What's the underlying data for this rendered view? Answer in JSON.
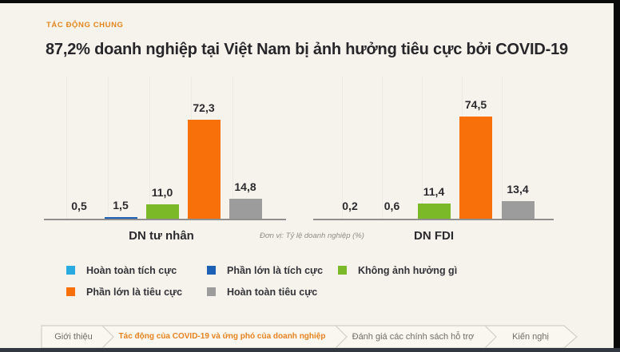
{
  "header": {
    "kicker": "TÁC ĐỘNG CHUNG",
    "title": "87,2% doanh nghiệp tại Việt Nam bị ảnh hưởng tiêu cực bởi COVID-19"
  },
  "chart_data": {
    "type": "bar",
    "title": "87,2% doanh nghiệp tại Việt Nam bị ảnh hưởng tiêu cực bởi COVID-19",
    "unit_note": "Đơn vị: Tỷ lệ doanh nghiệp (%)",
    "categories": [
      "DN tư nhân",
      "DN FDI"
    ],
    "series": [
      {
        "name": "Hoàn toàn tích cực",
        "color": "#29ABE2",
        "values": [
          0.5,
          0.2
        ],
        "labels": [
          "0,5",
          "0,2"
        ]
      },
      {
        "name": "Phần lớn là tích cực",
        "color": "#1C61B5",
        "values": [
          1.5,
          0.6
        ],
        "labels": [
          "1,5",
          "0,6"
        ]
      },
      {
        "name": "Không ảnh hưởng gì",
        "color": "#7CB928",
        "values": [
          11.0,
          11.4
        ],
        "labels": [
          "11,0",
          "11,4"
        ]
      },
      {
        "name": "Phần lớn là tiêu cực",
        "color": "#F87009",
        "values": [
          72.3,
          74.5
        ],
        "labels": [
          "72,3",
          "74,5"
        ]
      },
      {
        "name": "Hoàn toàn tiêu cực",
        "color": "#9C9C9C",
        "values": [
          14.8,
          13.4
        ],
        "labels": [
          "14,8",
          "13,4"
        ]
      }
    ],
    "ylim": [
      0,
      80
    ],
    "grid": false,
    "legend_position": "bottom"
  },
  "nav": {
    "items": [
      {
        "label": "Giới thiệu",
        "active": false
      },
      {
        "label": "Tác động của COVID-19 và ứng phó của doanh nghiệp",
        "active": true
      },
      {
        "label": "Đánh giá các chính sách hỗ trợ",
        "active": false
      },
      {
        "label": "Kiến nghị",
        "active": false
      }
    ]
  }
}
